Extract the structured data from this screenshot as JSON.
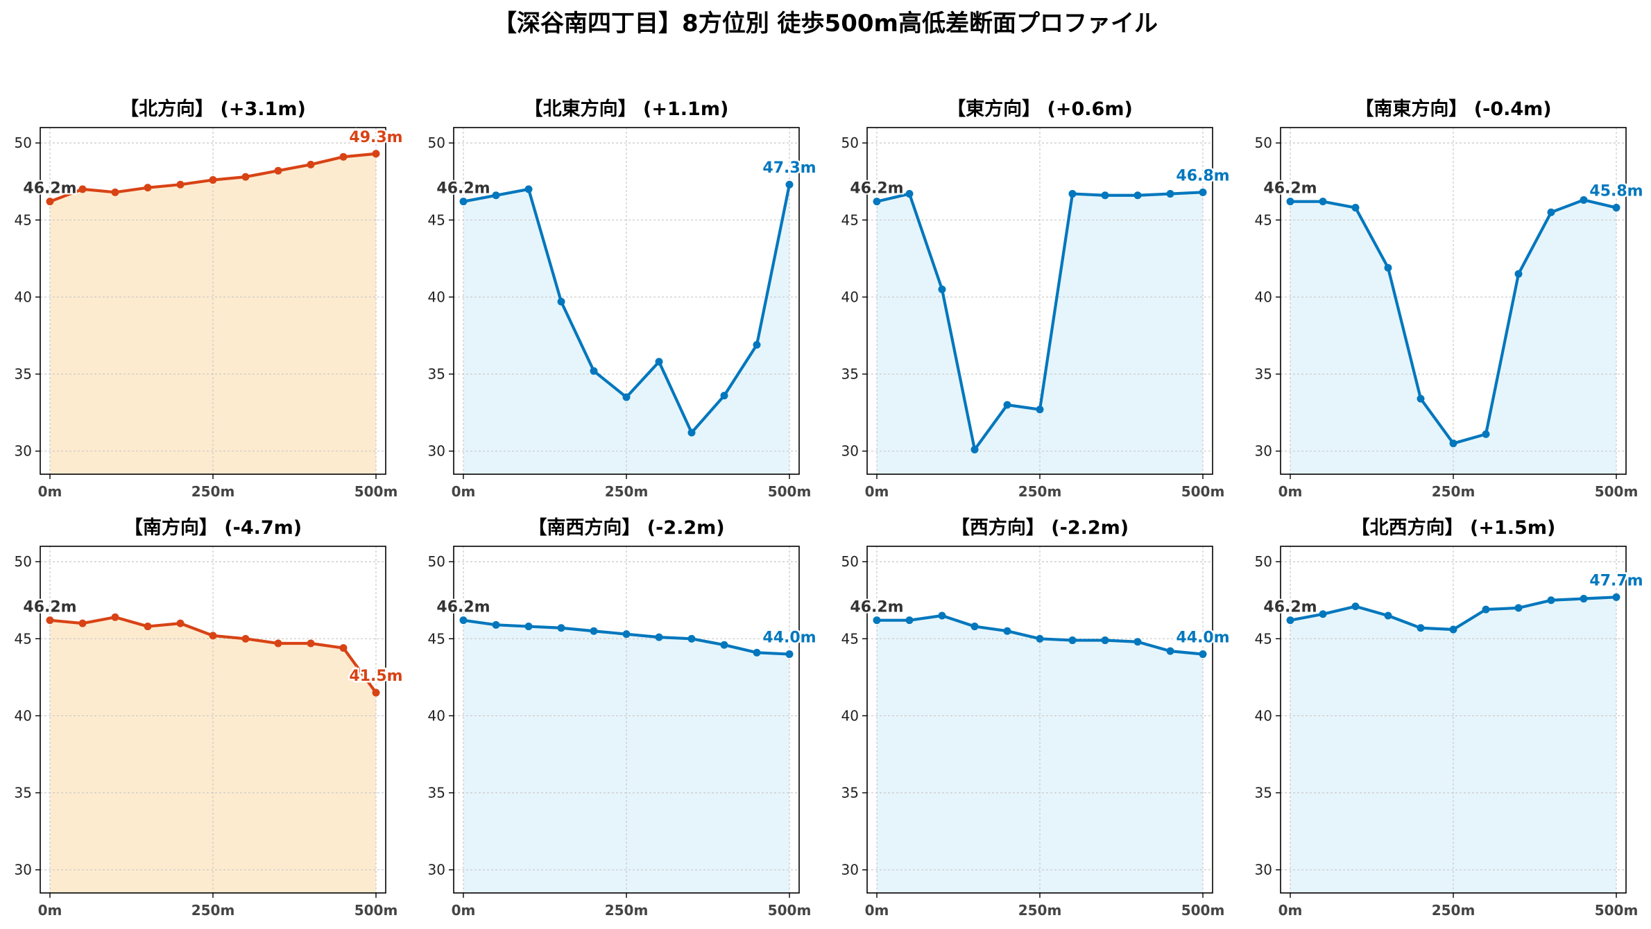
{
  "title": "【深谷南四丁目】8方位別 徒歩500m高低差断面プロファイル",
  "colors": {
    "up": "#d84315",
    "up_fill": "#fdebd0",
    "down": "#0277bd",
    "down_fill": "#e6f5fb",
    "start_label": "#333333"
  },
  "chart_data": [
    {
      "type": "area",
      "title": "【北方向】 (+3.1m)",
      "color": "up",
      "x": [
        0,
        50,
        100,
        150,
        200,
        250,
        300,
        350,
        400,
        450,
        500
      ],
      "values": [
        46.2,
        47.0,
        46.8,
        47.1,
        47.3,
        47.6,
        47.8,
        48.2,
        48.6,
        49.1,
        49.3
      ],
      "start_label": "46.2m",
      "end_label": "49.3m",
      "ylim": [
        28.5,
        51.0
      ],
      "yticks": [
        "30",
        "35",
        "40",
        "45",
        "50"
      ],
      "xticks": [
        "0m",
        "250m",
        "500m"
      ],
      "grid": true
    },
    {
      "type": "area",
      "title": "【北東方向】 (+1.1m)",
      "color": "down",
      "x": [
        0,
        50,
        100,
        150,
        200,
        250,
        300,
        350,
        400,
        450,
        500
      ],
      "values": [
        46.2,
        46.6,
        47.0,
        39.7,
        35.2,
        33.5,
        35.8,
        31.2,
        33.6,
        36.9,
        47.3
      ],
      "start_label": "46.2m",
      "end_label": "47.3m",
      "ylim": [
        28.5,
        51.0
      ],
      "yticks": [
        "30",
        "35",
        "40",
        "45",
        "50"
      ],
      "xticks": [
        "0m",
        "250m",
        "500m"
      ],
      "grid": true
    },
    {
      "type": "area",
      "title": "【東方向】 (+0.6m)",
      "color": "down",
      "x": [
        0,
        50,
        100,
        150,
        200,
        250,
        300,
        350,
        400,
        450,
        500
      ],
      "values": [
        46.2,
        46.7,
        40.5,
        30.1,
        33.0,
        32.7,
        46.7,
        46.6,
        46.6,
        46.7,
        46.8
      ],
      "start_label": "46.2m",
      "end_label": "46.8m",
      "ylim": [
        28.5,
        51.0
      ],
      "yticks": [
        "30",
        "35",
        "40",
        "45",
        "50"
      ],
      "xticks": [
        "0m",
        "250m",
        "500m"
      ],
      "grid": true
    },
    {
      "type": "area",
      "title": "【南東方向】 (-0.4m)",
      "color": "down",
      "x": [
        0,
        50,
        100,
        150,
        200,
        250,
        300,
        350,
        400,
        450,
        500
      ],
      "values": [
        46.2,
        46.2,
        45.8,
        41.9,
        33.4,
        30.5,
        31.1,
        41.5,
        45.5,
        46.3,
        45.8
      ],
      "start_label": "46.2m",
      "end_label": "45.8m",
      "ylim": [
        28.5,
        51.0
      ],
      "yticks": [
        "30",
        "35",
        "40",
        "45",
        "50"
      ],
      "xticks": [
        "0m",
        "250m",
        "500m"
      ],
      "grid": true
    },
    {
      "type": "area",
      "title": "【南方向】 (-4.7m)",
      "color": "up",
      "x": [
        0,
        50,
        100,
        150,
        200,
        250,
        300,
        350,
        400,
        450,
        500
      ],
      "values": [
        46.2,
        46.0,
        46.4,
        45.8,
        46.0,
        45.2,
        45.0,
        44.7,
        44.7,
        44.4,
        41.5
      ],
      "start_label": "46.2m",
      "end_label": "41.5m",
      "ylim": [
        28.5,
        51.0
      ],
      "yticks": [
        "30",
        "35",
        "40",
        "45",
        "50"
      ],
      "xticks": [
        "0m",
        "250m",
        "500m"
      ],
      "grid": true
    },
    {
      "type": "area",
      "title": "【南西方向】 (-2.2m)",
      "color": "down",
      "x": [
        0,
        50,
        100,
        150,
        200,
        250,
        300,
        350,
        400,
        450,
        500
      ],
      "values": [
        46.2,
        45.9,
        45.8,
        45.7,
        45.5,
        45.3,
        45.1,
        45.0,
        44.6,
        44.1,
        44.0
      ],
      "start_label": "46.2m",
      "end_label": "44.0m",
      "ylim": [
        28.5,
        51.0
      ],
      "yticks": [
        "30",
        "35",
        "40",
        "45",
        "50"
      ],
      "xticks": [
        "0m",
        "250m",
        "500m"
      ],
      "grid": true
    },
    {
      "type": "area",
      "title": "【西方向】 (-2.2m)",
      "color": "down",
      "x": [
        0,
        50,
        100,
        150,
        200,
        250,
        300,
        350,
        400,
        450,
        500
      ],
      "values": [
        46.2,
        46.2,
        46.5,
        45.8,
        45.5,
        45.0,
        44.9,
        44.9,
        44.8,
        44.2,
        44.0
      ],
      "start_label": "46.2m",
      "end_label": "44.0m",
      "ylim": [
        28.5,
        51.0
      ],
      "yticks": [
        "30",
        "35",
        "40",
        "45",
        "50"
      ],
      "xticks": [
        "0m",
        "250m",
        "500m"
      ],
      "grid": true
    },
    {
      "type": "area",
      "title": "【北西方向】 (+1.5m)",
      "color": "down",
      "x": [
        0,
        50,
        100,
        150,
        200,
        250,
        300,
        350,
        400,
        450,
        500
      ],
      "values": [
        46.2,
        46.6,
        47.1,
        46.5,
        45.7,
        45.6,
        46.9,
        47.0,
        47.5,
        47.6,
        47.7
      ],
      "start_label": "46.2m",
      "end_label": "47.7m",
      "ylim": [
        28.5,
        51.0
      ],
      "yticks": [
        "30",
        "35",
        "40",
        "45",
        "50"
      ],
      "xticks": [
        "0m",
        "250m",
        "500m"
      ],
      "grid": true
    }
  ]
}
